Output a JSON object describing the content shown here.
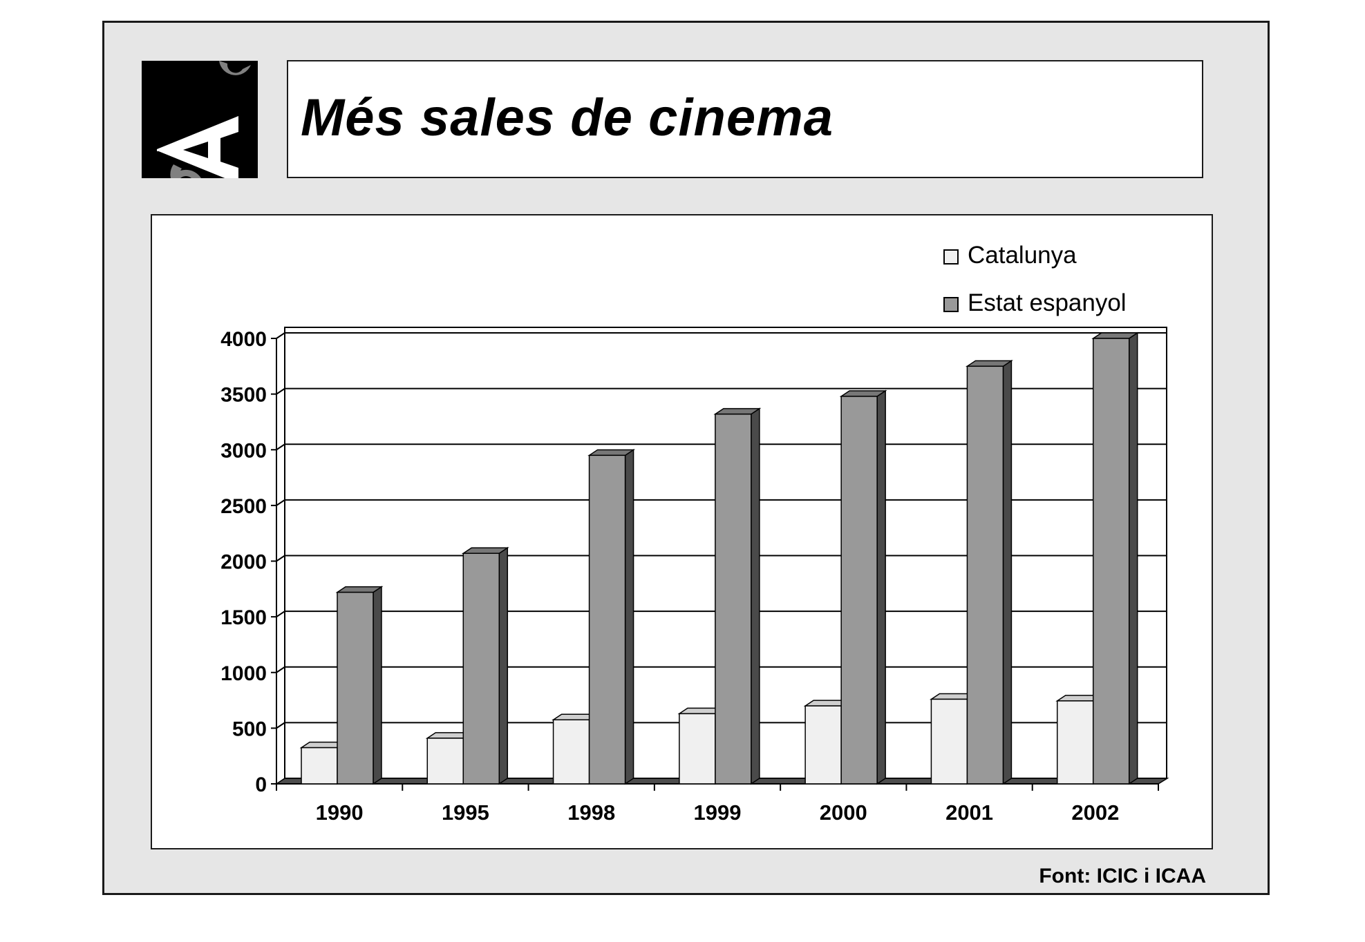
{
  "title": "Més sales de cinema",
  "source": "Font: ICIC i ICAA",
  "logo": {
    "text": "CAC",
    "background": "#000000",
    "letter_colors": [
      "#ffffff",
      "#7f7f7f"
    ]
  },
  "chart_data": {
    "type": "bar",
    "style": "3d-clustered",
    "categories": [
      "1990",
      "1995",
      "1998",
      "1999",
      "2000",
      "2001",
      "2002"
    ],
    "series": [
      {
        "name": "Catalunya",
        "values": [
          325,
          410,
          575,
          630,
          700,
          760,
          745
        ],
        "color": "#f0f0f0"
      },
      {
        "name": "Estat espanyol",
        "values": [
          1720,
          2070,
          2950,
          3320,
          3480,
          3750,
          4000
        ],
        "color": "#999999"
      }
    ],
    "ylim": [
      0,
      4000
    ],
    "yticks": [
      0,
      500,
      1000,
      1500,
      2000,
      2500,
      3000,
      3500,
      4000
    ],
    "grid": true,
    "legend": "top-right",
    "xlabel": "",
    "ylabel": ""
  }
}
